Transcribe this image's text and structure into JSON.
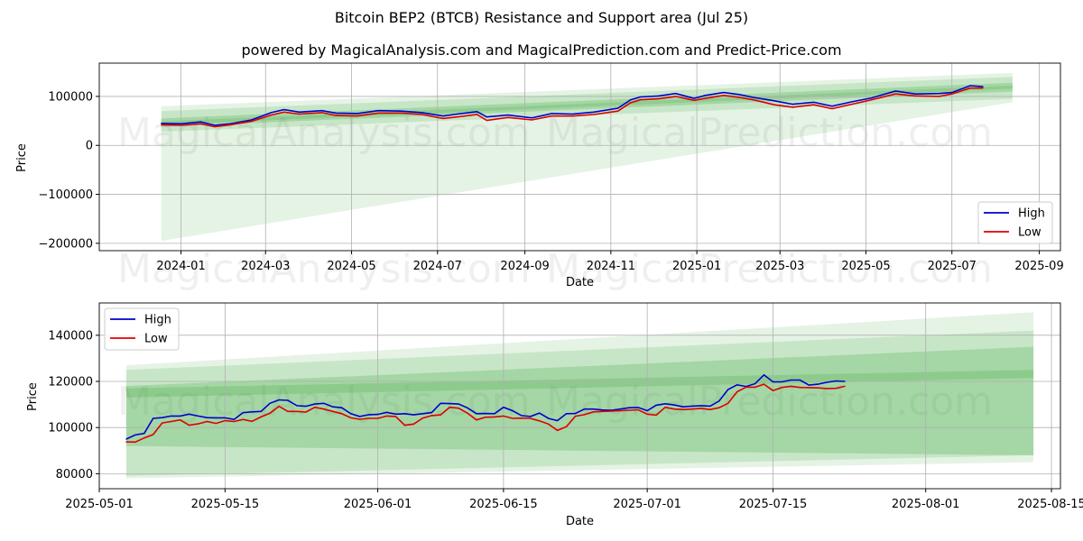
{
  "title": "Bitcoin BEP2 (BTCB) Resistance and Support area (Jul 25)",
  "subtitle": "powered by MagicalAnalysis.com and MagicalPrediction.com and Predict-Price.com",
  "watermarks": [
    "MagicalAnalysis.com",
    "MagicalPrediction.com"
  ],
  "colors": {
    "high": "#0000cc",
    "low": "#dd0000",
    "band": "#2ca02c",
    "grid": "#b0b0b0"
  },
  "chart_data": [
    {
      "type": "line",
      "xlabel": "Date",
      "ylabel": "Price",
      "xlim": [
        "2023-11-04",
        "2025-09-16"
      ],
      "ylim": [
        -215000,
        168000
      ],
      "x_ticks": [
        "2024-01",
        "2024-03",
        "2024-05",
        "2024-07",
        "2024-09",
        "2024-11",
        "2025-01",
        "2025-03",
        "2025-05",
        "2025-07",
        "2025-09"
      ],
      "y_ticks": [
        -200000,
        -100000,
        0,
        100000
      ],
      "y_tick_labels": [
        "−200000",
        "−100000",
        "0",
        "100000"
      ],
      "legend": {
        "position": "bottom-right",
        "entries": [
          "High",
          "Low"
        ]
      },
      "grid": true,
      "bands": [
        {
          "x": [
            "2023-12-18",
            "2025-08-13"
          ],
          "upper": [
            80000,
            148000
          ],
          "lower": [
            -195000,
            88000
          ],
          "opacity": 0.12
        },
        {
          "x": [
            "2023-12-18",
            "2025-08-13"
          ],
          "upper": [
            70000,
            140000
          ],
          "lower": [
            28000,
            95000
          ],
          "opacity": 0.16
        },
        {
          "x": [
            "2023-12-18",
            "2025-08-13"
          ],
          "upper": [
            55000,
            128000
          ],
          "lower": [
            38000,
            110000
          ],
          "opacity": 0.22
        },
        {
          "x": [
            "2023-12-18",
            "2025-08-13"
          ],
          "upper": [
            49000,
            122000
          ],
          "lower": [
            42000,
            116000
          ],
          "opacity": 0.18
        }
      ],
      "series": [
        {
          "name": "High",
          "color": "#0000cc",
          "x": [
            "2023-12-18",
            "2024-01-01",
            "2024-01-15",
            "2024-01-25",
            "2024-02-05",
            "2024-02-20",
            "2024-03-05",
            "2024-03-14",
            "2024-03-25",
            "2024-04-10",
            "2024-04-20",
            "2024-05-05",
            "2024-05-20",
            "2024-06-05",
            "2024-06-20",
            "2024-07-05",
            "2024-07-15",
            "2024-07-29",
            "2024-08-05",
            "2024-08-20",
            "2024-09-06",
            "2024-09-20",
            "2024-10-05",
            "2024-10-20",
            "2024-11-06",
            "2024-11-15",
            "2024-11-22",
            "2024-12-05",
            "2024-12-17",
            "2024-12-30",
            "2025-01-07",
            "2025-01-20",
            "2025-01-31",
            "2025-02-10",
            "2025-02-25",
            "2025-03-10",
            "2025-03-25",
            "2025-04-07",
            "2025-04-21",
            "2025-05-05",
            "2025-05-22",
            "2025-06-05",
            "2025-06-22",
            "2025-07-01",
            "2025-07-14",
            "2025-07-23"
          ],
          "values": [
            45000,
            44000,
            48000,
            41000,
            44000,
            52000,
            67000,
            73000,
            68000,
            71000,
            66000,
            65000,
            71000,
            70000,
            67000,
            60000,
            64000,
            69000,
            58000,
            62000,
            56000,
            65000,
            64000,
            68000,
            76000,
            93000,
            99000,
            101000,
            106000,
            96000,
            102000,
            108000,
            104000,
            98000,
            91000,
            84000,
            88000,
            80000,
            89000,
            97000,
            111000,
            105000,
            106000,
            108000,
            122000,
            120000
          ]
        },
        {
          "name": "Low",
          "color": "#dd0000",
          "x": [
            "2023-12-18",
            "2024-01-01",
            "2024-01-15",
            "2024-01-25",
            "2024-02-05",
            "2024-02-20",
            "2024-03-05",
            "2024-03-14",
            "2024-03-25",
            "2024-04-10",
            "2024-04-20",
            "2024-05-05",
            "2024-05-20",
            "2024-06-05",
            "2024-06-20",
            "2024-07-05",
            "2024-07-15",
            "2024-07-29",
            "2024-08-05",
            "2024-08-20",
            "2024-09-06",
            "2024-09-20",
            "2024-10-05",
            "2024-10-20",
            "2024-11-06",
            "2024-11-15",
            "2024-11-22",
            "2024-12-05",
            "2024-12-17",
            "2024-12-30",
            "2025-01-07",
            "2025-01-20",
            "2025-01-31",
            "2025-02-10",
            "2025-02-25",
            "2025-03-10",
            "2025-03-25",
            "2025-04-07",
            "2025-04-21",
            "2025-05-05",
            "2025-05-22",
            "2025-06-05",
            "2025-06-22",
            "2025-07-01",
            "2025-07-14",
            "2025-07-23"
          ],
          "values": [
            42000,
            41000,
            44000,
            38000,
            42000,
            49000,
            62000,
            68000,
            64000,
            67000,
            61000,
            60000,
            66000,
            66000,
            63000,
            55000,
            58000,
            63000,
            51000,
            57000,
            52000,
            60000,
            60000,
            63000,
            70000,
            87000,
            93000,
            95000,
            100000,
            92000,
            96000,
            102000,
            98000,
            93000,
            83000,
            78000,
            83000,
            75000,
            84000,
            93000,
            105000,
            101000,
            100000,
            105000,
            117000,
            117000
          ]
        }
      ]
    },
    {
      "type": "line",
      "xlabel": "Date",
      "ylabel": "Price",
      "xlim": [
        "2025-05-01",
        "2025-08-16"
      ],
      "ylim": [
        73500,
        154000
      ],
      "x_ticks": [
        "2025-05-01",
        "2025-05-15",
        "2025-06-01",
        "2025-06-15",
        "2025-07-01",
        "2025-07-15",
        "2025-08-01",
        "2025-08-15"
      ],
      "y_ticks": [
        80000,
        100000,
        120000,
        140000
      ],
      "legend": {
        "position": "top-left",
        "entries": [
          "High",
          "Low"
        ]
      },
      "grid": true,
      "bands": [
        {
          "x": [
            "2025-05-04",
            "2025-08-13"
          ],
          "upper": [
            127000,
            150000
          ],
          "lower": [
            78000,
            85000
          ],
          "opacity": 0.12
        },
        {
          "x": [
            "2025-05-04",
            "2025-08-13"
          ],
          "upper": [
            125000,
            142000
          ],
          "lower": [
            79000,
            88000
          ],
          "opacity": 0.16
        },
        {
          "x": [
            "2025-05-04",
            "2025-08-13"
          ],
          "upper": [
            118000,
            135000
          ],
          "lower": [
            92000,
            88000
          ],
          "opacity": 0.22
        },
        {
          "x": [
            "2025-05-04",
            "2025-08-13"
          ],
          "upper": [
            117000,
            125000
          ],
          "lower": [
            113000,
            121500
          ],
          "opacity": 0.2
        }
      ],
      "series": [
        {
          "name": "High",
          "color": "#0000cc",
          "x": [
            "2025-05-04",
            "2025-05-05",
            "2025-05-06",
            "2025-05-07",
            "2025-05-08",
            "2025-05-09",
            "2025-05-10",
            "2025-05-11",
            "2025-05-12",
            "2025-05-13",
            "2025-05-14",
            "2025-05-15",
            "2025-05-16",
            "2025-05-17",
            "2025-05-18",
            "2025-05-19",
            "2025-05-20",
            "2025-05-21",
            "2025-05-22",
            "2025-05-23",
            "2025-05-24",
            "2025-05-25",
            "2025-05-26",
            "2025-05-27",
            "2025-05-28",
            "2025-05-29",
            "2025-05-30",
            "2025-05-31",
            "2025-06-01",
            "2025-06-02",
            "2025-06-03",
            "2025-06-04",
            "2025-06-05",
            "2025-06-06",
            "2025-06-07",
            "2025-06-08",
            "2025-06-09",
            "2025-06-10",
            "2025-06-11",
            "2025-06-12",
            "2025-06-13",
            "2025-06-14",
            "2025-06-15",
            "2025-06-16",
            "2025-06-17",
            "2025-06-18",
            "2025-06-19",
            "2025-06-20",
            "2025-06-21",
            "2025-06-22",
            "2025-06-23",
            "2025-06-24",
            "2025-06-25",
            "2025-06-26",
            "2025-06-27",
            "2025-06-28",
            "2025-06-29",
            "2025-06-30",
            "2025-07-01",
            "2025-07-02",
            "2025-07-03",
            "2025-07-04",
            "2025-07-05",
            "2025-07-06",
            "2025-07-07",
            "2025-07-08",
            "2025-07-09",
            "2025-07-10",
            "2025-07-11",
            "2025-07-12",
            "2025-07-13",
            "2025-07-14",
            "2025-07-15",
            "2025-07-16",
            "2025-07-17",
            "2025-07-18",
            "2025-07-19",
            "2025-07-20",
            "2025-07-21",
            "2025-07-22",
            "2025-07-23"
          ],
          "values": [
            95000,
            96800,
            97500,
            104000,
            104300,
            105000,
            105000,
            105800,
            105000,
            104300,
            104200,
            104200,
            103500,
            106500,
            106800,
            107000,
            110500,
            112000,
            111800,
            109500,
            109200,
            110200,
            110500,
            109000,
            108600,
            106000,
            104800,
            105600,
            105700,
            106600,
            105800,
            106000,
            105500,
            106000,
            106500,
            110500,
            110400,
            110200,
            108500,
            106000,
            106100,
            106000,
            108800,
            107300,
            105200,
            104800,
            106300,
            104000,
            103000,
            106000,
            106100,
            108000,
            108000,
            107600,
            107500,
            108000,
            108600,
            108700,
            107300,
            109700,
            110300,
            109800,
            109000,
            109300,
            109500,
            109300,
            111500,
            116500,
            118500,
            117800,
            119000,
            122800,
            119800,
            119800,
            120600,
            120600,
            118400,
            118800,
            119600,
            120200,
            120000
          ]
        },
        {
          "name": "Low",
          "color": "#dd0000",
          "x": [
            "2025-05-04",
            "2025-05-05",
            "2025-05-06",
            "2025-05-07",
            "2025-05-08",
            "2025-05-09",
            "2025-05-10",
            "2025-05-11",
            "2025-05-12",
            "2025-05-13",
            "2025-05-14",
            "2025-05-15",
            "2025-05-16",
            "2025-05-17",
            "2025-05-18",
            "2025-05-19",
            "2025-05-20",
            "2025-05-21",
            "2025-05-22",
            "2025-05-23",
            "2025-05-24",
            "2025-05-25",
            "2025-05-26",
            "2025-05-27",
            "2025-05-28",
            "2025-05-29",
            "2025-05-30",
            "2025-05-31",
            "2025-06-01",
            "2025-06-02",
            "2025-06-03",
            "2025-06-04",
            "2025-06-05",
            "2025-06-06",
            "2025-06-07",
            "2025-06-08",
            "2025-06-09",
            "2025-06-10",
            "2025-06-11",
            "2025-06-12",
            "2025-06-13",
            "2025-06-14",
            "2025-06-15",
            "2025-06-16",
            "2025-06-17",
            "2025-06-18",
            "2025-06-19",
            "2025-06-20",
            "2025-06-21",
            "2025-06-22",
            "2025-06-23",
            "2025-06-24",
            "2025-06-25",
            "2025-06-26",
            "2025-06-27",
            "2025-06-28",
            "2025-06-29",
            "2025-06-30",
            "2025-07-01",
            "2025-07-02",
            "2025-07-03",
            "2025-07-04",
            "2025-07-05",
            "2025-07-06",
            "2025-07-07",
            "2025-07-08",
            "2025-07-09",
            "2025-07-10",
            "2025-07-11",
            "2025-07-12",
            "2025-07-13",
            "2025-07-14",
            "2025-07-15",
            "2025-07-16",
            "2025-07-17",
            "2025-07-18",
            "2025-07-19",
            "2025-07-20",
            "2025-07-21",
            "2025-07-22",
            "2025-07-23"
          ],
          "values": [
            93800,
            93700,
            95500,
            97000,
            102000,
            102600,
            103300,
            101000,
            101600,
            102600,
            101800,
            103000,
            102600,
            103500,
            102700,
            104600,
            106200,
            109200,
            107000,
            107000,
            106700,
            108800,
            108000,
            107000,
            106000,
            104200,
            103600,
            104000,
            104000,
            105000,
            104800,
            101000,
            101500,
            104100,
            105200,
            105500,
            108800,
            108400,
            106200,
            103300,
            104500,
            104600,
            105000,
            104000,
            104100,
            104000,
            102900,
            101500,
            98800,
            100400,
            104900,
            105600,
            106800,
            107000,
            107100,
            107300,
            107500,
            107700,
            105800,
            105400,
            108800,
            108000,
            107800,
            108000,
            108300,
            107800,
            108600,
            110500,
            115500,
            117500,
            117500,
            118800,
            116000,
            117400,
            117900,
            117400,
            117300,
            117200,
            116900,
            117000,
            117900
          ]
        }
      ]
    }
  ]
}
